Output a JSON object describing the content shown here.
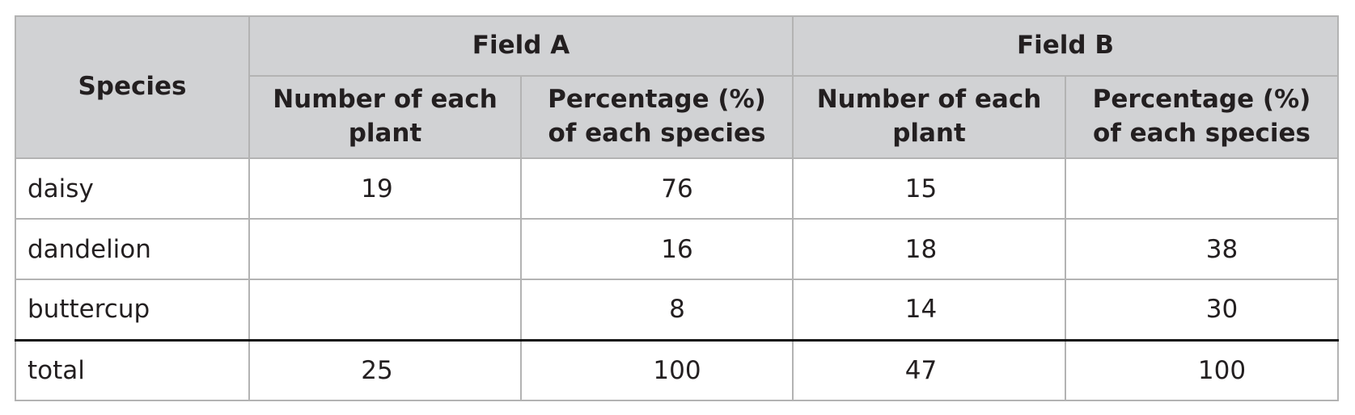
{
  "table": {
    "header": {
      "species": "Species",
      "groups": [
        "Field A",
        "Field B"
      ],
      "columns": [
        "Number of each plant",
        "Percentage (%) of each species",
        "Number of each plant",
        "Percentage (%) of each species"
      ]
    },
    "rows": [
      [
        "daisy",
        19,
        76,
        15,
        null
      ],
      [
        "dandelion",
        null,
        16,
        18,
        38
      ],
      [
        "buttercup",
        null,
        8,
        14,
        30
      ],
      [
        "total",
        25,
        100,
        47,
        100
      ]
    ]
  }
}
